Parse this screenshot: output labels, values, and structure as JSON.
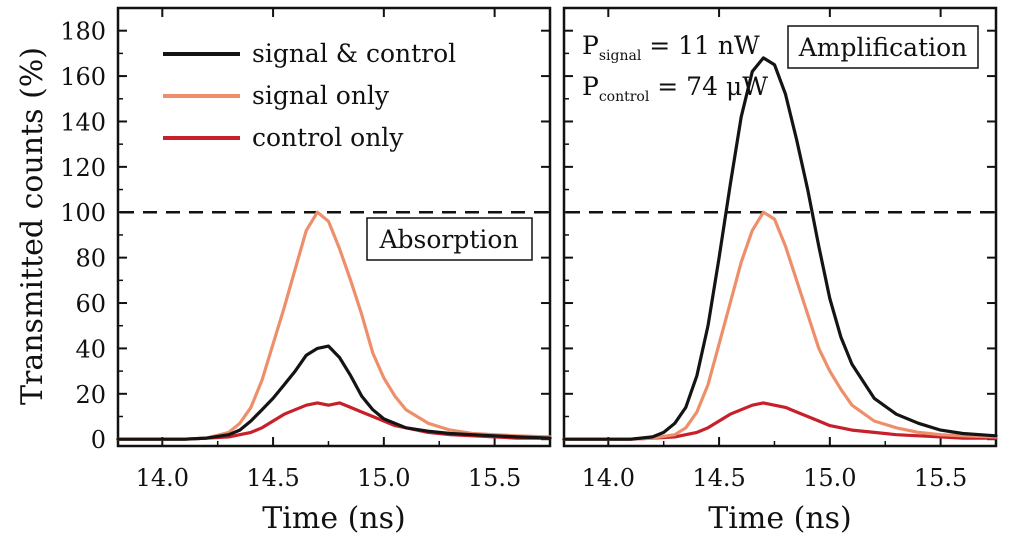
{
  "chart_data": [
    {
      "type": "line",
      "panel": "left",
      "xlabel": "Time (ns)",
      "ylabel": "Transmitted counts (%)",
      "xlim": [
        13.8,
        15.75
      ],
      "ylim": [
        -3,
        190
      ],
      "xticks": [
        14.0,
        14.5,
        15.0,
        15.5
      ],
      "xtick_labels": [
        "14.0",
        "14.5",
        "15.0",
        "15.5"
      ],
      "yticks": [
        0,
        20,
        40,
        60,
        80,
        100,
        120,
        140,
        160,
        180
      ],
      "ytick_labels": [
        "0",
        "20",
        "40",
        "60",
        "80",
        "100",
        "120",
        "140",
        "160",
        "180"
      ],
      "box_label": "Absorption",
      "reference_line": {
        "y": 100,
        "style": "dashed"
      },
      "legend": {
        "placement": "top-left",
        "entries": [
          "signal & control",
          "signal only",
          "control only"
        ]
      },
      "series": [
        {
          "name": "signal & control",
          "color": "#141414",
          "x": [
            13.8,
            14.1,
            14.2,
            14.3,
            14.35,
            14.4,
            14.45,
            14.5,
            14.55,
            14.6,
            14.65,
            14.7,
            14.75,
            14.8,
            14.85,
            14.9,
            14.95,
            15.0,
            15.05,
            15.1,
            15.2,
            15.3,
            15.4,
            15.5,
            15.6,
            15.75
          ],
          "y": [
            0,
            0,
            0.5,
            2,
            4,
            8,
            13,
            18,
            24,
            30,
            37,
            40,
            41,
            36,
            28,
            19,
            13,
            9,
            7,
            5,
            3.5,
            2.5,
            2,
            1.5,
            1,
            0.5
          ]
        },
        {
          "name": "signal only",
          "color": "#ee8f6b",
          "x": [
            13.8,
            14.1,
            14.2,
            14.3,
            14.35,
            14.4,
            14.45,
            14.5,
            14.55,
            14.6,
            14.65,
            14.7,
            14.75,
            14.8,
            14.85,
            14.9,
            14.95,
            15.0,
            15.05,
            15.1,
            15.2,
            15.3,
            15.4,
            15.5,
            15.6,
            15.75
          ],
          "y": [
            0,
            0,
            0.5,
            3,
            7,
            14,
            26,
            42,
            58,
            75,
            92,
            100,
            96,
            84,
            70,
            55,
            38,
            27,
            19,
            13,
            7,
            4,
            2.5,
            2,
            1.5,
            1
          ]
        },
        {
          "name": "control only",
          "color": "#c8202a",
          "x": [
            13.8,
            14.1,
            14.2,
            14.3,
            14.35,
            14.4,
            14.45,
            14.5,
            14.55,
            14.6,
            14.65,
            14.7,
            14.75,
            14.8,
            14.85,
            14.9,
            14.95,
            15.0,
            15.05,
            15.1,
            15.2,
            15.3,
            15.4,
            15.5,
            15.6,
            15.75
          ],
          "y": [
            0,
            0,
            0.5,
            1,
            2,
            3,
            5,
            8,
            11,
            13,
            15,
            16,
            15,
            16,
            14,
            12,
            10,
            8,
            6,
            5,
            3,
            2,
            1.5,
            1,
            0.5,
            0.5
          ]
        }
      ]
    },
    {
      "type": "line",
      "panel": "right",
      "xlabel": "Time (ns)",
      "xlim": [
        13.8,
        15.75
      ],
      "ylim": [
        -3,
        190
      ],
      "xticks": [
        14.0,
        14.5,
        15.0,
        15.5
      ],
      "xtick_labels": [
        "14.0",
        "14.5",
        "15.0",
        "15.5"
      ],
      "box_label": "Amplification",
      "reference_line": {
        "y": 100,
        "style": "dashed"
      },
      "annotations": [
        {
          "base": "P",
          "sub": "signal",
          "text": " = 11 nW"
        },
        {
          "base": "P",
          "sub": "control",
          "text": " = 74 μW"
        }
      ],
      "series": [
        {
          "name": "signal & control",
          "color": "#141414",
          "x": [
            13.8,
            14.1,
            14.2,
            14.25,
            14.3,
            14.35,
            14.4,
            14.45,
            14.5,
            14.55,
            14.6,
            14.65,
            14.7,
            14.75,
            14.8,
            14.85,
            14.9,
            14.95,
            15.0,
            15.05,
            15.1,
            15.2,
            15.3,
            15.4,
            15.5,
            15.6,
            15.75
          ],
          "y": [
            0,
            0,
            1,
            3,
            7,
            14,
            28,
            50,
            80,
            112,
            142,
            162,
            168,
            165,
            152,
            132,
            110,
            85,
            62,
            45,
            33,
            18,
            11,
            7,
            4,
            2.5,
            1.5
          ]
        },
        {
          "name": "signal only",
          "color": "#ee8f6b",
          "x": [
            13.8,
            14.1,
            14.2,
            14.3,
            14.35,
            14.4,
            14.45,
            14.5,
            14.55,
            14.6,
            14.65,
            14.7,
            14.75,
            14.8,
            14.85,
            14.9,
            14.95,
            15.0,
            15.05,
            15.1,
            15.2,
            15.3,
            15.4,
            15.5,
            15.6,
            15.75
          ],
          "y": [
            0,
            0,
            0.5,
            2,
            5,
            12,
            24,
            42,
            60,
            78,
            92,
            100,
            97,
            85,
            70,
            55,
            40,
            30,
            22,
            15,
            8,
            5,
            3,
            2,
            1.5,
            1
          ]
        },
        {
          "name": "control only",
          "color": "#c8202a",
          "x": [
            13.8,
            14.1,
            14.2,
            14.3,
            14.35,
            14.4,
            14.45,
            14.5,
            14.55,
            14.6,
            14.65,
            14.7,
            14.75,
            14.8,
            14.85,
            14.9,
            14.95,
            15.0,
            15.05,
            15.1,
            15.2,
            15.3,
            15.4,
            15.5,
            15.6,
            15.75
          ],
          "y": [
            0,
            0,
            0.5,
            1,
            2,
            3,
            5,
            8,
            11,
            13,
            15,
            16,
            15,
            14,
            12,
            10,
            8,
            6,
            5,
            4,
            3,
            2,
            1.5,
            1,
            0.5,
            0.5
          ]
        }
      ]
    }
  ]
}
